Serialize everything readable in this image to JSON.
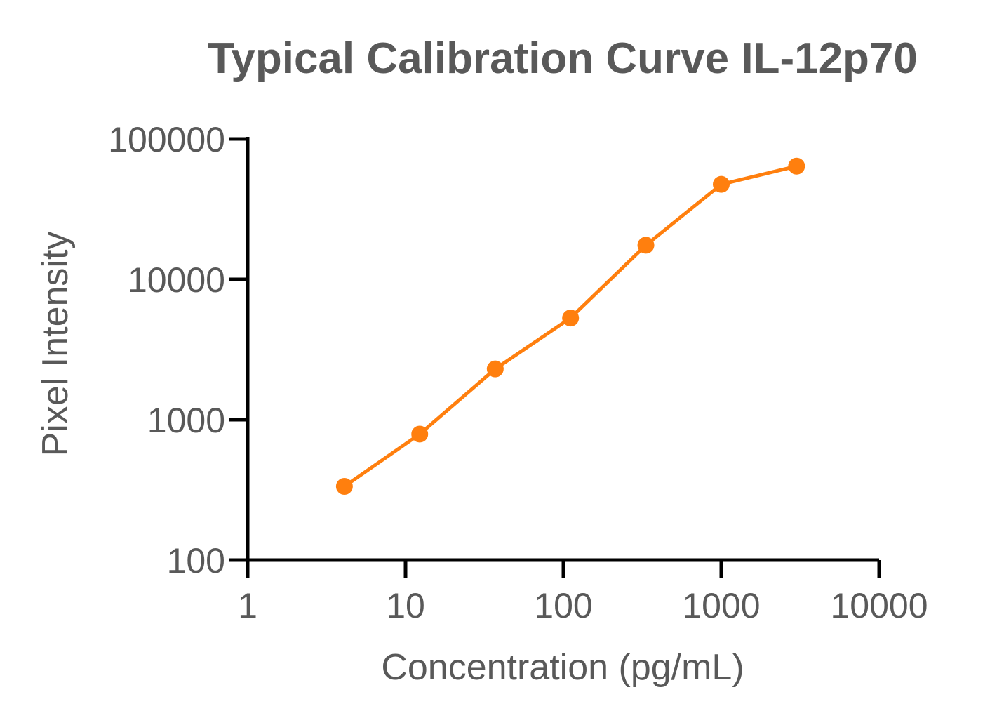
{
  "chart_data": {
    "type": "line",
    "title": "Typical Calibration Curve IL-12p70",
    "xlabel": "Concentration (pg/mL)",
    "ylabel": "Pixel Intensity",
    "x_scale": "log",
    "y_scale": "log",
    "xlim": [
      1,
      10000
    ],
    "ylim": [
      100,
      100000
    ],
    "x_ticks": [
      1,
      10,
      100,
      1000,
      10000
    ],
    "x_tick_labels": [
      "1",
      "10",
      "100",
      "1000",
      "10000"
    ],
    "y_ticks": [
      100,
      1000,
      10000,
      100000
    ],
    "y_tick_labels": [
      "100",
      "1000",
      "10000",
      "100000"
    ],
    "grid": false,
    "legend": "none",
    "color": "#FF7F0E",
    "series": [
      {
        "x": [
          4.1,
          12.3,
          37,
          111,
          333,
          1000,
          3000
        ],
        "y": [
          335,
          790,
          2300,
          5300,
          17500,
          47500,
          64000
        ]
      }
    ]
  }
}
